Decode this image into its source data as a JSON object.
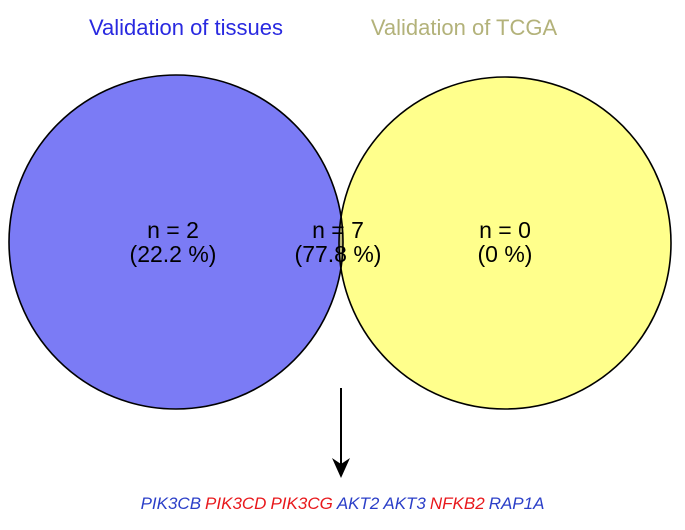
{
  "colors": {
    "left_fill": "#7b7bf5",
    "right_fill": "#ffff8c",
    "overlap_fill": "#b9b67c",
    "left_title": "#2929e0",
    "right_title": "#b3b27a",
    "outline": "#000000",
    "gene_blue": "#2b3fc8",
    "gene_red": "#e8181c"
  },
  "sets": {
    "left": {
      "title": "Validation of tissues",
      "count": "n = 2",
      "percent": "(22.2 %)"
    },
    "right": {
      "title": "Validation of TCGA",
      "count": "n = 0",
      "percent": "(0 %)"
    },
    "overlap": {
      "count": "n = 7",
      "percent": "(77.8 %)"
    }
  },
  "genes": [
    {
      "symbol": "PIK3CB",
      "color": "blue"
    },
    {
      "symbol": "PIK3CD",
      "color": "red"
    },
    {
      "symbol": "PIK3CG",
      "color": "red"
    },
    {
      "symbol": "AKT2",
      "color": "blue"
    },
    {
      "symbol": "AKT3",
      "color": "blue"
    },
    {
      "symbol": "NFKB2",
      "color": "red"
    },
    {
      "symbol": "RAP1A",
      "color": "blue"
    }
  ]
}
